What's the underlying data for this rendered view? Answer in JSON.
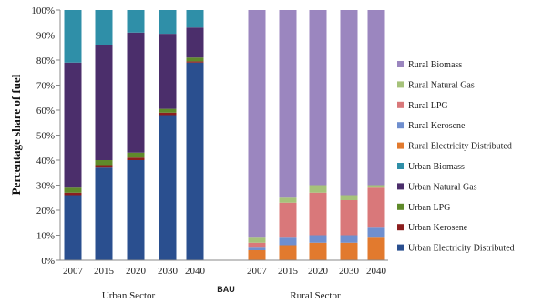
{
  "chart_data": {
    "type": "bar",
    "stacked": true,
    "ylabel": "Percentage share of fuel",
    "yticks": [
      "0%",
      "10%",
      "20%",
      "30%",
      "40%",
      "50%",
      "60%",
      "70%",
      "80%",
      "90%",
      "100%"
    ],
    "ylim": [
      0,
      100
    ],
    "grid": false,
    "legend_position": "right",
    "center_label": "BAU",
    "groups": [
      {
        "label": "Urban Sector",
        "categories": [
          "2007",
          "2015",
          "2020",
          "2030",
          "2040"
        ],
        "series": [
          {
            "name": "Urban Electricity Distributed",
            "color": "#2a4f8f",
            "values": [
              26,
              37,
              40,
              58,
              79
            ]
          },
          {
            "name": "Urban Kerosene",
            "color": "#8b1e1e",
            "values": [
              1,
              1,
              1,
              1,
              0.5
            ]
          },
          {
            "name": "Urban LPG",
            "color": "#5f8a2a",
            "values": [
              2,
              2,
              2,
              1.5,
              1.5
            ]
          },
          {
            "name": "Urban Natural Gas",
            "color": "#4b2e6b",
            "values": [
              50,
              46,
              48,
              30,
              12
            ]
          },
          {
            "name": "Urban Biomass",
            "color": "#2f8fa8",
            "values": [
              21,
              14,
              9,
              9.5,
              7
            ]
          }
        ]
      },
      {
        "label": "Rural Sector",
        "categories": [
          "2007",
          "2015",
          "2020",
          "2030",
          "2040"
        ],
        "series": [
          {
            "name": "Rural Electricity Distributed",
            "color": "#e27a2e",
            "values": [
              4,
              6,
              7,
              7,
              9
            ]
          },
          {
            "name": "Rural Kerosene",
            "color": "#6f8fcf",
            "values": [
              1,
              3,
              3,
              3,
              4
            ]
          },
          {
            "name": "Rural LPG",
            "color": "#d9787a",
            "values": [
              2,
              14,
              17,
              14,
              16
            ]
          },
          {
            "name": "Rural Natural Gas",
            "color": "#a6c27a",
            "values": [
              2,
              2,
              3,
              2,
              1
            ]
          },
          {
            "name": "Rural Biomass",
            "color": "#9b86bf",
            "values": [
              91,
              75,
              70,
              74,
              70
            ]
          }
        ]
      }
    ],
    "legend": [
      {
        "name": "Rural Biomass",
        "color": "#9b86bf"
      },
      {
        "name": "Rural Natural Gas",
        "color": "#a6c27a"
      },
      {
        "name": "Rural LPG",
        "color": "#d9787a"
      },
      {
        "name": "Rural Kerosene",
        "color": "#6f8fcf"
      },
      {
        "name": "Rural Electricity Distributed",
        "color": "#e27a2e"
      },
      {
        "name": "Urban Biomass",
        "color": "#2f8fa8"
      },
      {
        "name": "Urban Natural Gas",
        "color": "#4b2e6b"
      },
      {
        "name": "Urban LPG",
        "color": "#5f8a2a"
      },
      {
        "name": "Urban Kerosene",
        "color": "#8b1e1e"
      },
      {
        "name": "Urban Electricity Distributed",
        "color": "#2a4f8f"
      }
    ]
  }
}
